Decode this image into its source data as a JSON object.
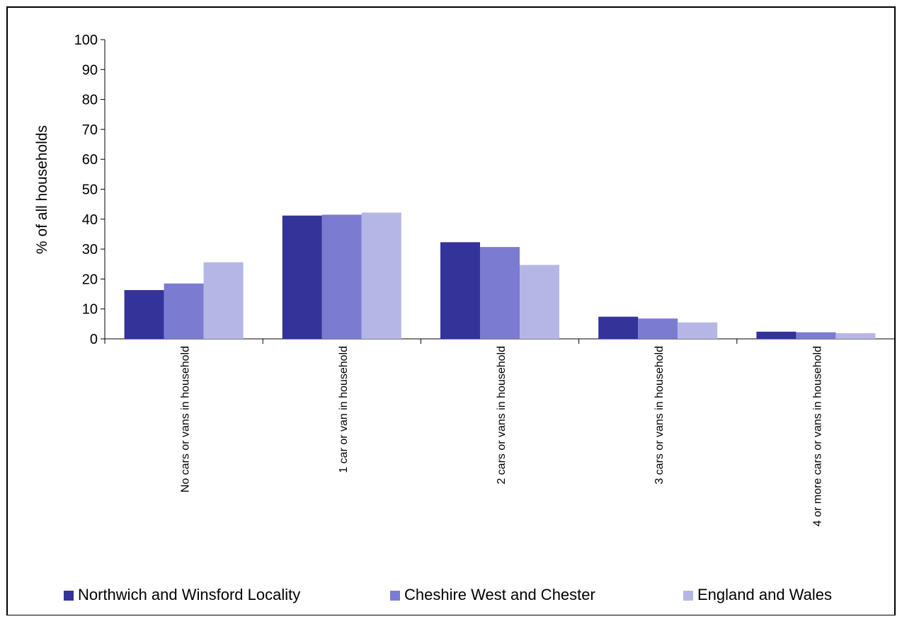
{
  "chart_data": {
    "type": "bar",
    "title": "",
    "xlabel": "",
    "ylabel": "% of all households",
    "ylim": [
      0,
      100
    ],
    "yticks": [
      0,
      10,
      20,
      30,
      40,
      50,
      60,
      70,
      80,
      90,
      100
    ],
    "grid": false,
    "legend_position": "bottom",
    "categories": [
      "No cars or vans in household",
      "1 car or van in household",
      "2 cars or vans in household",
      "3 cars or vans in household",
      "4 or more cars or vans in household"
    ],
    "series": [
      {
        "name": "Northwich and Winsford Locality",
        "color": "#333399",
        "values": [
          16.3,
          41.2,
          32.3,
          7.4,
          2.4
        ]
      },
      {
        "name": "Cheshire West and Chester",
        "color": "#7b7bd1",
        "values": [
          18.5,
          41.5,
          30.7,
          6.8,
          2.2
        ]
      },
      {
        "name": "England and Wales",
        "color": "#b6b6e6",
        "values": [
          25.6,
          42.2,
          24.7,
          5.5,
          1.9
        ]
      }
    ]
  }
}
